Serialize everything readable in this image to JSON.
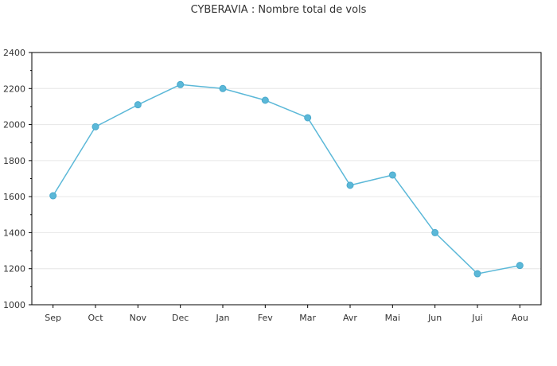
{
  "chart_data": {
    "type": "line",
    "title": "CYBERAVIA : Nombre total de vols",
    "categories": [
      "Sep",
      "Oct",
      "Nov",
      "Dec",
      "Jan",
      "Fev",
      "Mar",
      "Avr",
      "Mai",
      "Jun",
      "Jui",
      "Aou"
    ],
    "series": [
      {
        "values": [
          1605,
          1988,
          2110,
          2222,
          2200,
          2135,
          2038,
          1663,
          1720,
          1400,
          1172,
          1218
        ],
        "color": "#5bb8d8"
      }
    ],
    "ylim": [
      1000,
      2400
    ],
    "yticks": [
      1000,
      1200,
      1400,
      1600,
      1800,
      2000,
      2200,
      2400
    ],
    "grid": true,
    "legend": "none"
  }
}
